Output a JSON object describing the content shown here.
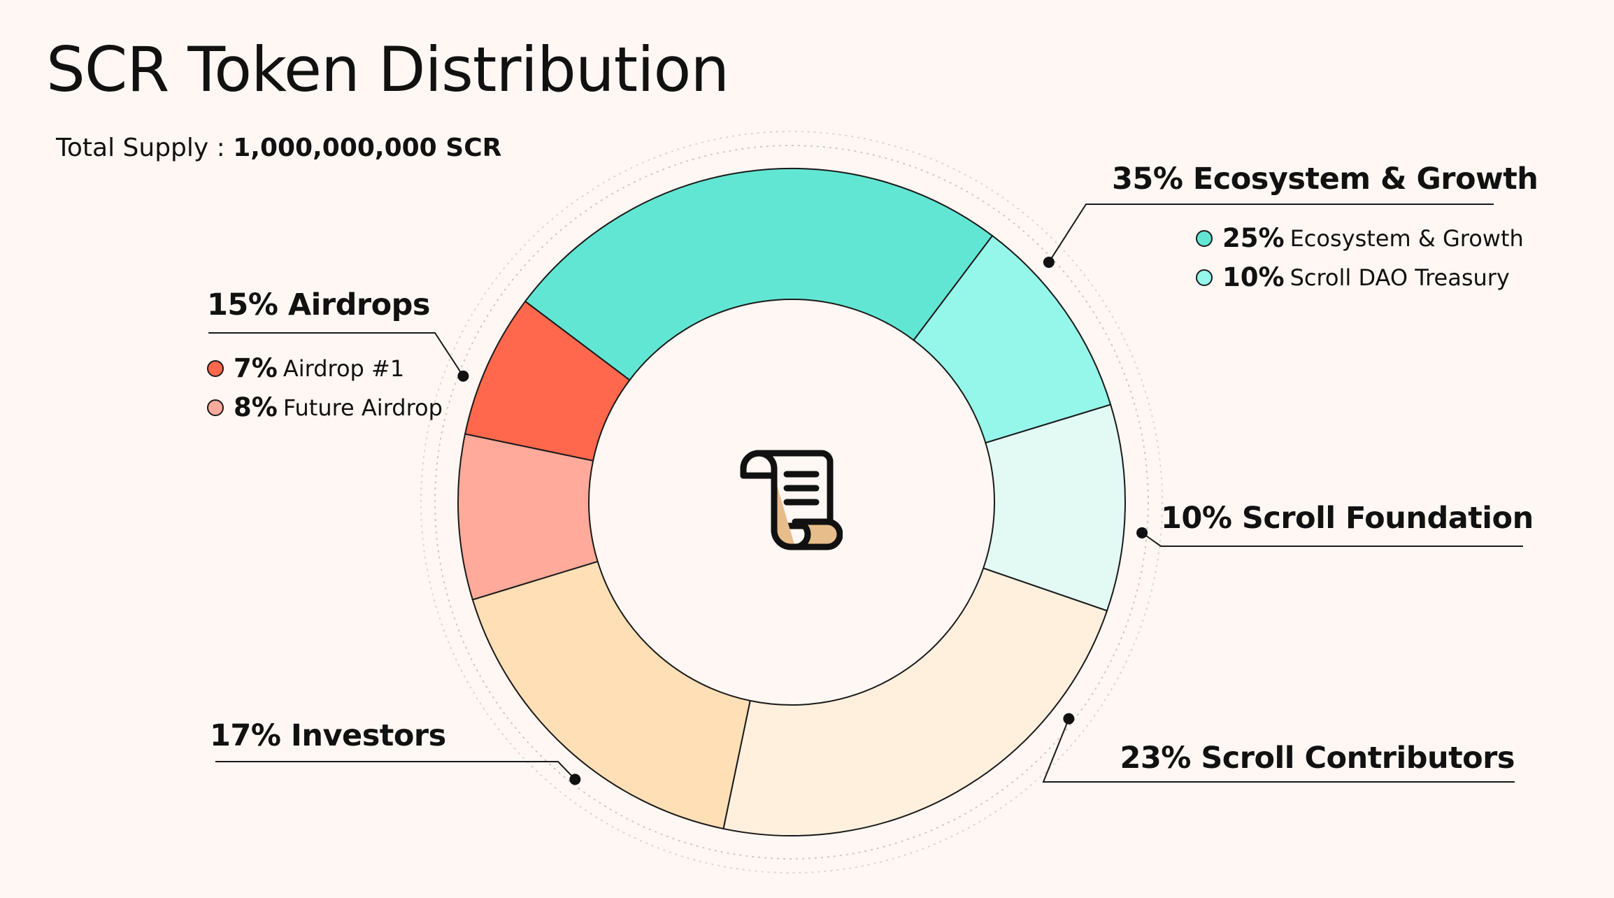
{
  "title": "SCR Token Distribution",
  "total_supply": {
    "label": "Total Supply : ",
    "value": "1,000,000,000 SCR"
  },
  "center_icon": "scroll-document-icon",
  "chart_data": {
    "type": "pie",
    "donut": true,
    "title": "SCR Token Distribution",
    "categories": [
      "Ecosystem & Growth",
      "Scroll DAO Treasury",
      "Scroll Foundation",
      "Scroll Contributors",
      "Investors",
      "Future Airdrop",
      "Airdrop #1"
    ],
    "values": [
      25,
      10,
      10,
      23,
      17,
      8,
      7
    ],
    "colors": [
      "#62e6d4",
      "#95f7ea",
      "#e2f9f4",
      "#fff0de",
      "#ffdfb6",
      "#ffaa9a",
      "#ff684d"
    ],
    "groups": [
      {
        "label": "35% Ecosystem & Growth",
        "pct": "35%",
        "name": "Ecosystem & Growth",
        "items": [
          {
            "pct": "25%",
            "name": "Ecosystem & Growth",
            "color": "#62e6d4"
          },
          {
            "pct": "10%",
            "name": "Scroll DAO Treasury",
            "color": "#95f7ea"
          }
        ]
      },
      {
        "label": "10% Scroll Foundation",
        "pct": "10%",
        "name": "Scroll Foundation",
        "items": []
      },
      {
        "label": "23% Scroll Contributors",
        "pct": "23%",
        "name": "Scroll Contributors",
        "items": []
      },
      {
        "label": "17% Investors",
        "pct": "17%",
        "name": "Investors",
        "items": []
      },
      {
        "label": "15% Airdrops",
        "pct": "15%",
        "name": "Airdrops",
        "items": [
          {
            "pct": "7%",
            "name": "Airdrop #1",
            "color": "#ff684d"
          },
          {
            "pct": "8%",
            "name": "Future Airdrop",
            "color": "#ffaa9a"
          }
        ]
      }
    ]
  }
}
